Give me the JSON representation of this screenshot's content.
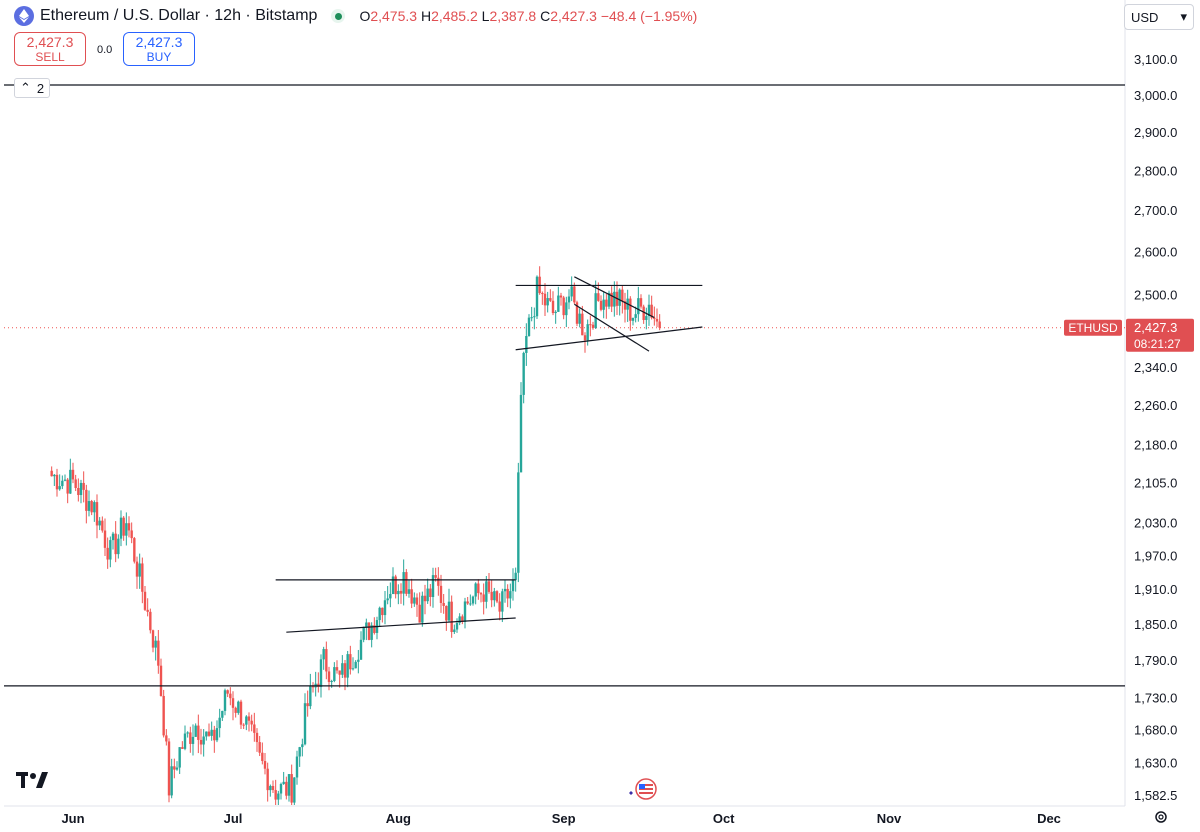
{
  "header": {
    "symbol_title": "Ethereum / U.S. Dollar · 12h · Bitstamp",
    "ohlc": {
      "o_label": "O",
      "o_value": "2,475.3",
      "h_label": "H",
      "h_value": "2,485.2",
      "l_label": "L",
      "l_value": "2,387.8",
      "c_label": "C",
      "c_value": "2,427.3",
      "change": "−48.4 (−1.95%)"
    }
  },
  "trade": {
    "sell_price": "2,427.3",
    "sell_label": "SELL",
    "spread": "0.0",
    "buy_price": "2,427.3",
    "buy_label": "BUY"
  },
  "legend_toggle": {
    "count": "2"
  },
  "currency_selector": {
    "value": "USD"
  },
  "price_label": {
    "ticker": "ETHUSD",
    "price": "2,427.3",
    "countdown": "08:21:27"
  },
  "chart_data": {
    "type": "candlestick",
    "symbol": "ETHUSD",
    "interval": "12h",
    "x_axis_labels": [
      "Jun",
      "Jul",
      "Aug",
      "Sep",
      "Oct",
      "Nov",
      "Dec"
    ],
    "y_axis_labels": [
      3100,
      3000,
      2900,
      2800,
      2700,
      2600,
      2500,
      2340,
      2260,
      2180,
      2105,
      2030,
      1970,
      1910,
      1850,
      1790,
      1730,
      1680,
      1630,
      1582.5
    ],
    "y_axis_text": [
      "3,100.0",
      "3,000.0",
      "2,900.0",
      "2,800.0",
      "2,700.0",
      "2,600.0",
      "2,500.0",
      "2,340.0",
      "2,260.0",
      "2,180.0",
      "2,105.0",
      "2,030.0",
      "1,970.0",
      "1,910.0",
      "1,850.0",
      "1,790.0",
      "1,730.0",
      "1,680.0",
      "1,630.0",
      "1,582.5"
    ],
    "y_scale": "log",
    "last_price": 2427.3,
    "colors": {
      "up": "#26a69a",
      "down": "#ef5350",
      "lines": "#131722",
      "last_price_line": "#ef5350"
    },
    "horizontal_lines": [
      3030,
      1750
    ],
    "trendlines": [
      {
        "from": [
          "2024-07-09",
          1928
        ],
        "to": [
          "2024-08-23",
          1928
        ]
      },
      {
        "from": [
          "2024-07-11",
          1838
        ],
        "to": [
          "2024-08-23",
          1862
        ]
      },
      {
        "from": [
          "2024-08-23",
          2523
        ],
        "to": [
          "2024-09-27",
          2523
        ]
      },
      {
        "from": [
          "2024-08-23",
          2379
        ],
        "to": [
          "2024-09-27",
          2429
        ]
      },
      {
        "from": [
          "2024-09-03",
          2543
        ],
        "to": [
          "2024-09-18",
          2450
        ]
      },
      {
        "from": [
          "2024-09-03",
          2480
        ],
        "to": [
          "2024-09-17",
          2376
        ]
      }
    ],
    "candle_anchors": [
      [
        "2024-05-28",
        2120
      ],
      [
        "2024-06-01",
        2108
      ],
      [
        "2024-06-05",
        2060
      ],
      [
        "2024-06-08",
        1975
      ],
      [
        "2024-06-11",
        2035
      ],
      [
        "2024-06-14",
        1910
      ],
      [
        "2024-06-17",
        1790
      ],
      [
        "2024-06-19",
        1595
      ],
      [
        "2024-06-21",
        1650
      ],
      [
        "2024-06-24",
        1690
      ],
      [
        "2024-06-27",
        1660
      ],
      [
        "2024-06-30",
        1740
      ],
      [
        "2024-07-03",
        1700
      ],
      [
        "2024-07-06",
        1635
      ],
      [
        "2024-07-09",
        1590
      ],
      [
        "2024-07-12",
        1595
      ],
      [
        "2024-07-15",
        1720
      ],
      [
        "2024-07-18",
        1790
      ],
      [
        "2024-07-21",
        1760
      ],
      [
        "2024-07-24",
        1810
      ],
      [
        "2024-07-27",
        1850
      ],
      [
        "2024-07-30",
        1910
      ],
      [
        "2024-08-02",
        1935
      ],
      [
        "2024-08-05",
        1880
      ],
      [
        "2024-08-08",
        1920
      ],
      [
        "2024-08-11",
        1860
      ],
      [
        "2024-08-14",
        1890
      ],
      [
        "2024-08-17",
        1910
      ],
      [
        "2024-08-20",
        1875
      ],
      [
        "2024-08-23",
        1925
      ],
      [
        "2024-08-24",
        2280
      ],
      [
        "2024-08-25",
        2400
      ],
      [
        "2024-08-27",
        2510
      ],
      [
        "2024-08-30",
        2460
      ],
      [
        "2024-09-02",
        2500
      ],
      [
        "2024-09-05",
        2420
      ],
      [
        "2024-09-08",
        2500
      ],
      [
        "2024-09-11",
        2490
      ],
      [
        "2024-09-14",
        2460
      ],
      [
        "2024-09-17",
        2480
      ],
      [
        "2024-09-19",
        2427.3
      ]
    ]
  }
}
